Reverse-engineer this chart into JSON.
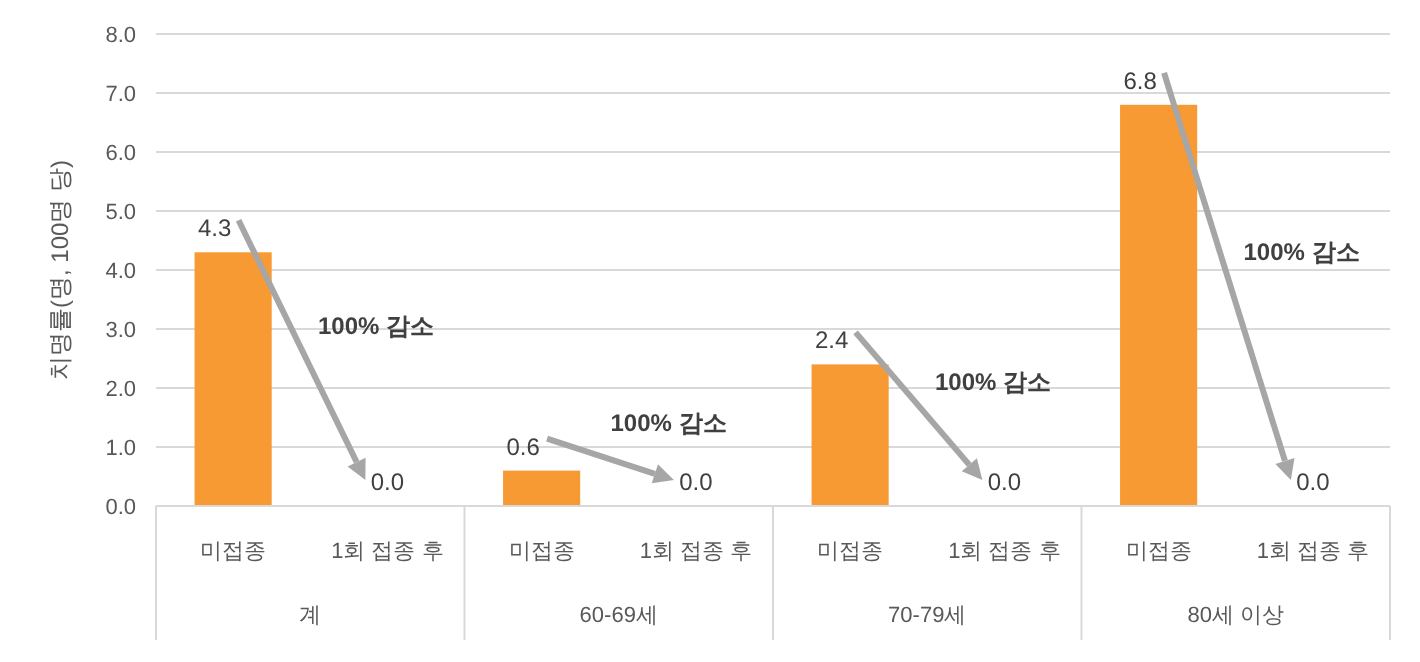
{
  "chart_data": {
    "type": "bar",
    "ylabel": "치명률(명, 100명 당)",
    "categories": [
      "미접종",
      "1회 접종 후",
      "미접종",
      "1회 접종 후",
      "미접종",
      "1회 접종 후",
      "미접종",
      "1회 접종 후"
    ],
    "values": [
      4.3,
      0.0,
      0.6,
      0.0,
      2.4,
      0.0,
      6.8,
      0.0
    ],
    "color": "#f79a34",
    "ylim": [
      0,
      8
    ],
    "yticks": [
      {
        "value": 0,
        "label": "0.0"
      },
      {
        "value": 1,
        "label": "1.0"
      },
      {
        "value": 2,
        "label": "2.0"
      },
      {
        "value": 3,
        "label": "3.0"
      },
      {
        "value": 4,
        "label": "4.0"
      },
      {
        "value": 5,
        "label": "5.0"
      },
      {
        "value": 6,
        "label": "6.0"
      },
      {
        "value": 7,
        "label": "7.0"
      },
      {
        "value": 8,
        "label": "8.0"
      }
    ],
    "grid": "y",
    "value_labels": [
      "4.3",
      "0.0",
      "0.6",
      "0.0",
      "2.4",
      "0.0",
      "6.8",
      "0.0"
    ],
    "annotations": [
      "계",
      "60-69세",
      "70-79세",
      "80세 이상",
      "100% 감소",
      "100% 감소",
      "100% 감소",
      "100% 감소"
    ]
  }
}
